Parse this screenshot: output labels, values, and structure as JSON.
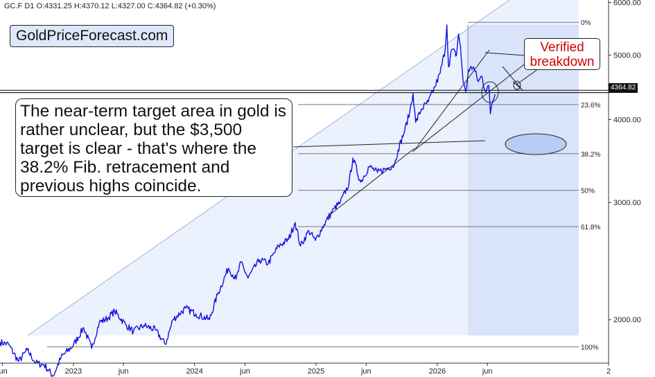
{
  "header": {
    "ticker_line": "GC.F  D1  O:4331.25  H:4370.12  L:4327.00  C:4364.82  (+0.30%)"
  },
  "brand_label": "GoldPriceForecast.com",
  "annotations": {
    "comment": "The near-term target area in gold is rather unclear, but the $3,500 target is clear - that's where the 38.2% Fib. retracement and previous highs coincide.",
    "verified": "Verified breakdown"
  },
  "price_tag": "4364.82",
  "colors": {
    "price_line": "#1010e0",
    "channel_fill": "#dbe6fb",
    "fib_line": "#555555",
    "annotation_red": "#d00000"
  },
  "chart_data": {
    "type": "line",
    "title": "",
    "scale": "log",
    "ylim": [
      1720,
      6050
    ],
    "x_range": [
      "2022-05-25",
      "2027-06-01"
    ],
    "y_ticks": [
      {
        "value": 6000,
        "label": "6000.00"
      },
      {
        "value": 5000,
        "label": "5000.00"
      },
      {
        "value": 4000,
        "label": "4000.00"
      },
      {
        "value": 3000,
        "label": "3000.00"
      },
      {
        "value": 2000,
        "label": "2000.00"
      }
    ],
    "x_ticks": [
      {
        "date": "2022-06-01",
        "label": "jun"
      },
      {
        "date": "2023-01-01",
        "label": "2023"
      },
      {
        "date": "2023-06-01",
        "label": "jun"
      },
      {
        "date": "2024-01-01",
        "label": "2024"
      },
      {
        "date": "2024-06-01",
        "label": "jun"
      },
      {
        "date": "2025-01-01",
        "label": "2025"
      },
      {
        "date": "2025-06-01",
        "label": "jun"
      },
      {
        "date": "2026-01-01",
        "label": "2026"
      },
      {
        "date": "2026-06-01",
        "label": "jun"
      },
      {
        "date": "2027-06-01",
        "label": "2"
      }
    ],
    "fib_levels": [
      {
        "label": "0%",
        "value": 5600
      },
      {
        "label": "23.6%",
        "value": 4212
      },
      {
        "label": "38.2%",
        "value": 3553
      },
      {
        "label": "50%",
        "value": 3130
      },
      {
        "label": "61.8%",
        "value": 2760
      },
      {
        "label": "100%",
        "value": 1820
      }
    ],
    "horizontal_levels": [
      4425,
      4390
    ],
    "series": [
      {
        "values": [
          {
            "x": "2022-05-25",
            "y": 1850
          },
          {
            "x": "2022-06-20",
            "y": 1835
          },
          {
            "x": "2022-07-20",
            "y": 1730
          },
          {
            "x": "2022-08-15",
            "y": 1800
          },
          {
            "x": "2022-09-10",
            "y": 1720
          },
          {
            "x": "2022-10-05",
            "y": 1710
          },
          {
            "x": "2022-11-01",
            "y": 1645
          },
          {
            "x": "2022-11-25",
            "y": 1755
          },
          {
            "x": "2023-01-01",
            "y": 1830
          },
          {
            "x": "2023-02-01",
            "y": 1945
          },
          {
            "x": "2023-02-25",
            "y": 1810
          },
          {
            "x": "2023-03-20",
            "y": 1980
          },
          {
            "x": "2023-04-15",
            "y": 2010
          },
          {
            "x": "2023-05-05",
            "y": 2060
          },
          {
            "x": "2023-06-10",
            "y": 1960
          },
          {
            "x": "2023-07-01",
            "y": 1920
          },
          {
            "x": "2023-08-01",
            "y": 1960
          },
          {
            "x": "2023-09-05",
            "y": 1930
          },
          {
            "x": "2023-10-05",
            "y": 1835
          },
          {
            "x": "2023-10-28",
            "y": 2000
          },
          {
            "x": "2023-12-05",
            "y": 2080
          },
          {
            "x": "2024-01-05",
            "y": 2040
          },
          {
            "x": "2024-02-15",
            "y": 2000
          },
          {
            "x": "2024-03-10",
            "y": 2180
          },
          {
            "x": "2024-04-12",
            "y": 2390
          },
          {
            "x": "2024-05-05",
            "y": 2300
          },
          {
            "x": "2024-05-20",
            "y": 2440
          },
          {
            "x": "2024-06-10",
            "y": 2310
          },
          {
            "x": "2024-07-15",
            "y": 2460
          },
          {
            "x": "2024-08-10",
            "y": 2430
          },
          {
            "x": "2024-09-10",
            "y": 2580
          },
          {
            "x": "2024-10-10",
            "y": 2640
          },
          {
            "x": "2024-10-30",
            "y": 2800
          },
          {
            "x": "2024-11-15",
            "y": 2580
          },
          {
            "x": "2024-12-10",
            "y": 2720
          },
          {
            "x": "2024-12-30",
            "y": 2630
          },
          {
            "x": "2025-01-25",
            "y": 2780
          },
          {
            "x": "2025-02-25",
            "y": 2940
          },
          {
            "x": "2025-03-15",
            "y": 3000
          },
          {
            "x": "2025-04-10",
            "y": 3200
          },
          {
            "x": "2025-04-22",
            "y": 3500
          },
          {
            "x": "2025-05-15",
            "y": 3220
          },
          {
            "x": "2025-06-10",
            "y": 3400
          },
          {
            "x": "2025-07-05",
            "y": 3330
          },
          {
            "x": "2025-08-05",
            "y": 3380
          },
          {
            "x": "2025-08-25",
            "y": 3420
          },
          {
            "x": "2025-09-05",
            "y": 3600
          },
          {
            "x": "2025-09-25",
            "y": 3850
          },
          {
            "x": "2025-10-10",
            "y": 4100
          },
          {
            "x": "2025-10-20",
            "y": 4380
          },
          {
            "x": "2025-10-28",
            "y": 3960
          },
          {
            "x": "2025-11-15",
            "y": 4150
          },
          {
            "x": "2025-12-05",
            "y": 4250
          },
          {
            "x": "2025-12-25",
            "y": 4480
          },
          {
            "x": "2026-01-10",
            "y": 4700
          },
          {
            "x": "2026-01-25",
            "y": 5100
          },
          {
            "x": "2026-01-30",
            "y": 5550
          },
          {
            "x": "2026-02-04",
            "y": 4800
          },
          {
            "x": "2026-02-14",
            "y": 5100
          },
          {
            "x": "2026-02-28",
            "y": 5000
          },
          {
            "x": "2026-03-06",
            "y": 5380
          },
          {
            "x": "2026-03-12",
            "y": 5150
          },
          {
            "x": "2026-03-20",
            "y": 4550
          },
          {
            "x": "2026-03-28",
            "y": 4400
          },
          {
            "x": "2026-04-05",
            "y": 4750
          },
          {
            "x": "2026-04-20",
            "y": 4800
          },
          {
            "x": "2026-05-05",
            "y": 4560
          },
          {
            "x": "2026-05-15",
            "y": 4650
          },
          {
            "x": "2026-05-25",
            "y": 4420
          },
          {
            "x": "2026-06-05",
            "y": 4500
          },
          {
            "x": "2026-06-10",
            "y": 4080
          },
          {
            "x": "2026-06-16",
            "y": 4250
          },
          {
            "x": "2026-06-24",
            "y": 4364.82
          }
        ]
      }
    ]
  }
}
